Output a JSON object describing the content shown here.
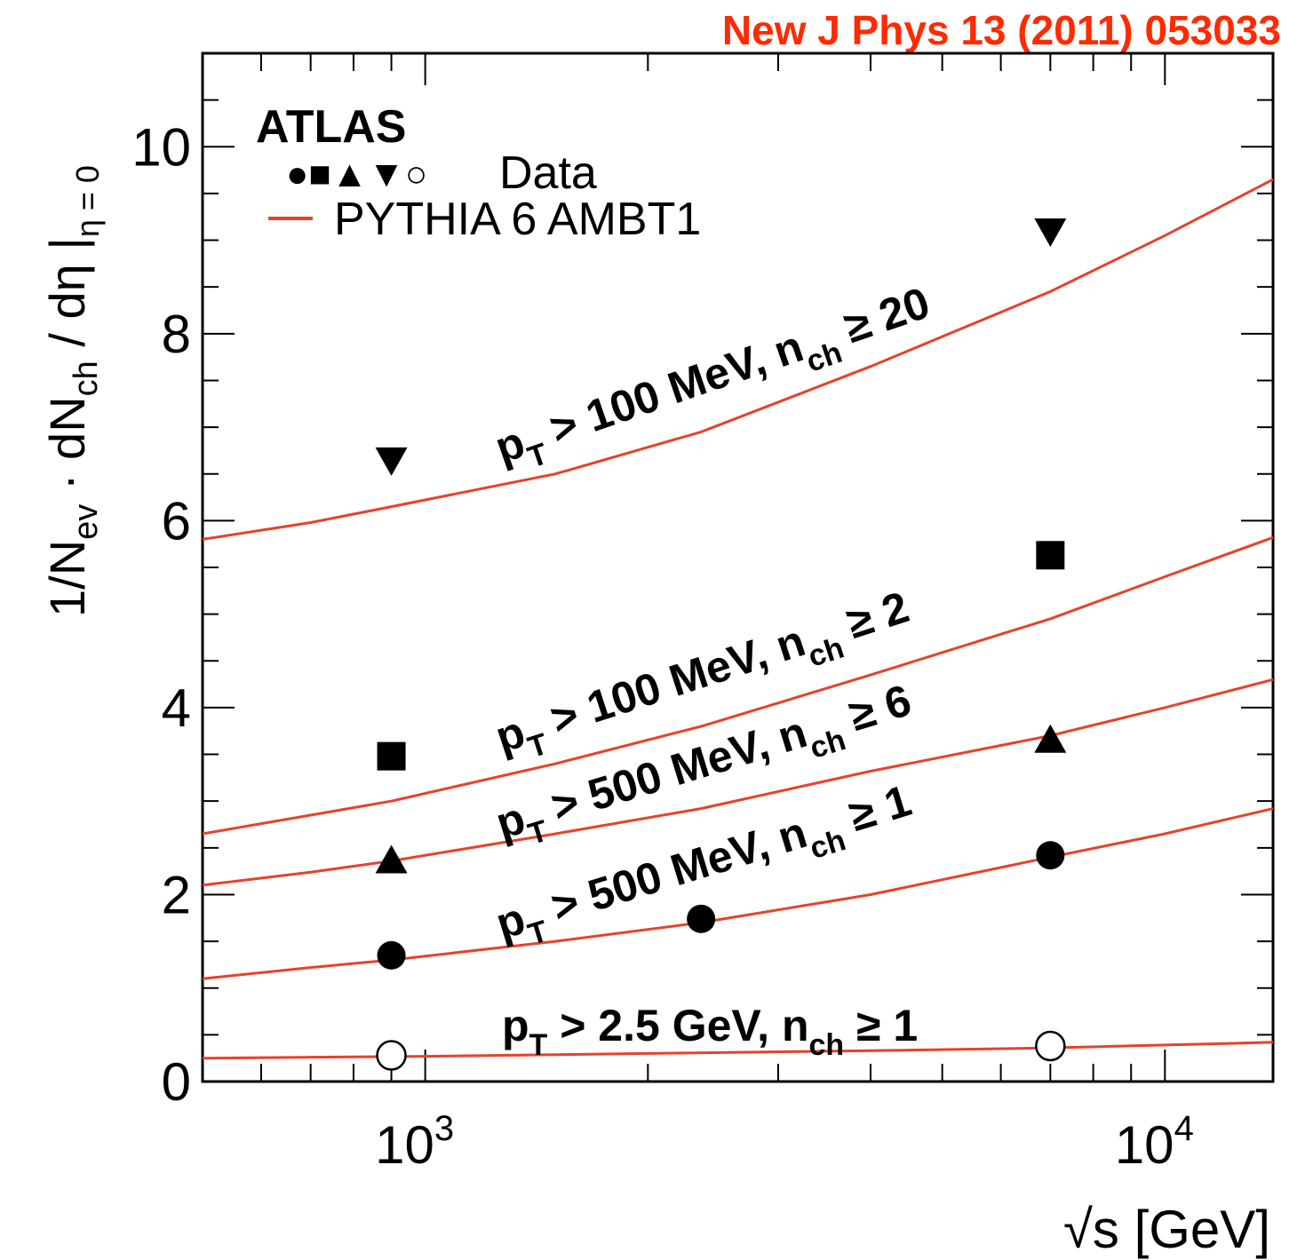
{
  "citation": "New J Phys 13 (2011) 053033",
  "colors": {
    "citation": "#ff2a00",
    "model": "#e8412c",
    "data": "#000000"
  },
  "chart_data": {
    "type": "scatter",
    "x_scale": "log",
    "xlim": [
      500,
      14000
    ],
    "ylim": [
      0,
      11
    ],
    "xlabel": {
      "root": "√",
      "main": "s [GeV]"
    },
    "ylabel": {
      "part1": "1/N",
      "sub1": "ev",
      "part2": " · dN",
      "sub2": "ch",
      "part3": " / dη |",
      "sub3": "η = 0"
    },
    "x_ticks": [
      {
        "value": 1000,
        "base": "10",
        "exp": "3"
      },
      {
        "value": 10000,
        "base": "10",
        "exp": "4"
      }
    ],
    "y_ticks": [
      {
        "value": 0,
        "label": "0"
      },
      {
        "value": 2,
        "label": "2"
      },
      {
        "value": 4,
        "label": "4"
      },
      {
        "value": 6,
        "label": "6"
      },
      {
        "value": 8,
        "label": "8"
      },
      {
        "value": 10,
        "label": "10"
      }
    ],
    "legend": {
      "experiment": "ATLAS",
      "data_symbols": "●■▲▼○",
      "data_label": "Data",
      "model_label": "PYTHIA 6 AMBT1",
      "position": "top-left"
    },
    "series": [
      {
        "cut": {
          "p": "p",
          "psub": "T",
          "mid": " > 2.5 GeV, n",
          "nsub": "ch",
          "tail": " ≥ 1"
        },
        "marker": "open-circle",
        "data": [
          {
            "x": 900,
            "y": 0.28
          },
          {
            "x": 7000,
            "y": 0.38
          }
        ],
        "model": [
          [
            500,
            0.25
          ],
          [
            1000,
            0.27
          ],
          [
            2000,
            0.3
          ],
          [
            4000,
            0.33
          ],
          [
            7000,
            0.36
          ],
          [
            10000,
            0.39
          ],
          [
            14000,
            0.42
          ]
        ]
      },
      {
        "cut": {
          "p": "p",
          "psub": "T",
          "mid": " > 500 MeV, n",
          "nsub": "ch",
          "tail": " ≥ 1"
        },
        "marker": "circle",
        "data": [
          {
            "x": 900,
            "y": 1.35
          },
          {
            "x": 2360,
            "y": 1.74
          },
          {
            "x": 7000,
            "y": 2.42
          }
        ],
        "model": [
          [
            500,
            1.1
          ],
          [
            700,
            1.22
          ],
          [
            900,
            1.3
          ],
          [
            1500,
            1.5
          ],
          [
            2360,
            1.7
          ],
          [
            4000,
            2.0
          ],
          [
            7000,
            2.4
          ],
          [
            10000,
            2.65
          ],
          [
            14000,
            2.92
          ]
        ]
      },
      {
        "cut": {
          "p": "p",
          "psub": "T",
          "mid": " > 500 MeV, n",
          "nsub": "ch",
          "tail": " ≥ 6"
        },
        "marker": "triangle-up",
        "data": [
          {
            "x": 900,
            "y": 2.36
          },
          {
            "x": 7000,
            "y": 3.65
          }
        ],
        "model": [
          [
            500,
            2.1
          ],
          [
            700,
            2.24
          ],
          [
            900,
            2.36
          ],
          [
            1500,
            2.65
          ],
          [
            2360,
            2.92
          ],
          [
            4000,
            3.32
          ],
          [
            7000,
            3.7
          ],
          [
            10000,
            4.0
          ],
          [
            14000,
            4.3
          ]
        ]
      },
      {
        "cut": {
          "p": "p",
          "psub": "T",
          "mid": " > 100 MeV, n",
          "nsub": "ch",
          "tail": " ≥ 2"
        },
        "marker": "square",
        "data": [
          {
            "x": 900,
            "y": 3.48
          },
          {
            "x": 7000,
            "y": 5.63
          }
        ],
        "model": [
          [
            500,
            2.65
          ],
          [
            700,
            2.85
          ],
          [
            900,
            3.0
          ],
          [
            1500,
            3.4
          ],
          [
            2360,
            3.8
          ],
          [
            4000,
            4.35
          ],
          [
            7000,
            4.95
          ],
          [
            10000,
            5.4
          ],
          [
            14000,
            5.82
          ]
        ]
      },
      {
        "cut": {
          "p": "p",
          "psub": "T",
          "mid": " > 100 MeV, n",
          "nsub": "ch",
          "tail": " ≥ 20"
        },
        "marker": "triangle-down",
        "data": [
          {
            "x": 900,
            "y": 6.65
          },
          {
            "x": 7000,
            "y": 9.1
          }
        ],
        "model": [
          [
            500,
            5.8
          ],
          [
            700,
            5.98
          ],
          [
            900,
            6.15
          ],
          [
            1500,
            6.5
          ],
          [
            2360,
            6.95
          ],
          [
            4000,
            7.65
          ],
          [
            7000,
            8.45
          ],
          [
            10000,
            9.05
          ],
          [
            14000,
            9.65
          ]
        ]
      }
    ]
  }
}
